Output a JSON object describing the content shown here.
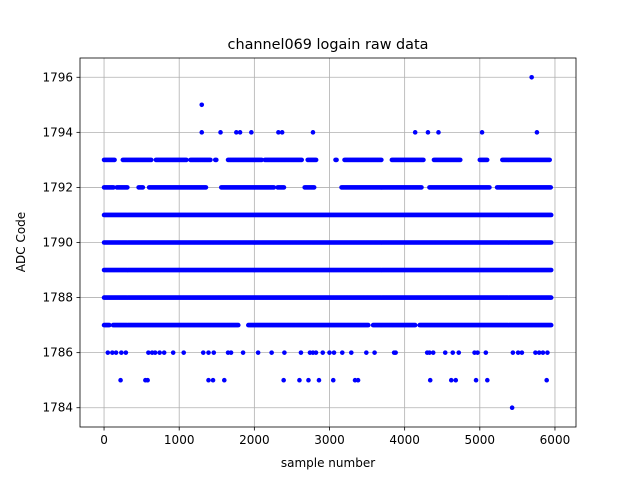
{
  "chart_data": {
    "type": "scatter",
    "title": "channel069 logain raw data",
    "xlabel": "sample number",
    "ylabel": "ADC Code",
    "xlim": [
      -320,
      6280
    ],
    "ylim": [
      1783.3,
      1796.7
    ],
    "xticks": [
      0,
      1000,
      2000,
      3000,
      4000,
      5000,
      6000
    ],
    "yticks": [
      1784,
      1786,
      1788,
      1790,
      1792,
      1794,
      1796
    ],
    "grid": true,
    "marker_color": "#0000ff",
    "n_samples": 6000,
    "series": [
      {
        "values_by_level": [
          {
            "y": 1796,
            "x": [
              5690
            ]
          },
          {
            "y": 1795,
            "x": [
              1300
            ]
          },
          {
            "y": 1794,
            "x": [
              1300,
              1550,
              1760,
              1810,
              1960,
              2320,
              2370,
              2780,
              4140,
              4310,
              4450,
              5030,
              5760
            ]
          },
          {
            "y": 1793,
            "x_ranges": [
              [
                0,
                140
              ],
              [
                250,
                640
              ],
              [
                690,
                1100
              ],
              [
                1150,
                1420
              ],
              [
                1480,
                1500
              ],
              [
                1650,
                2100
              ],
              [
                2140,
                2640
              ],
              [
                2710,
                2830
              ],
              [
                3080,
                3100
              ],
              [
                3200,
                3700
              ],
              [
                3830,
                4250
              ],
              [
                4390,
                4740
              ],
              [
                5000,
                5110
              ],
              [
                5300,
                5940
              ]
            ]
          },
          {
            "y": 1792,
            "x_ranges": [
              [
                0,
                130
              ],
              [
                170,
                320
              ],
              [
                460,
                520
              ],
              [
                600,
                1360
              ],
              [
                1560,
                2260
              ],
              [
                2310,
                2400
              ],
              [
                2670,
                2800
              ],
              [
                3160,
                4230
              ],
              [
                4330,
                5140
              ],
              [
                5230,
                5950
              ]
            ]
          },
          {
            "y": 1791,
            "x_ranges": [
              [
                0,
                5950
              ]
            ]
          },
          {
            "y": 1790,
            "x_ranges": [
              [
                0,
                5950
              ]
            ]
          },
          {
            "y": 1789,
            "x_ranges": [
              [
                0,
                5950
              ]
            ]
          },
          {
            "y": 1788,
            "x_ranges": [
              [
                0,
                5950
              ]
            ]
          },
          {
            "y": 1787,
            "x_ranges": [
              [
                0,
                70
              ],
              [
                120,
                1790
              ],
              [
                1920,
                3520
              ],
              [
                3580,
                4140
              ],
              [
                4200,
                5950
              ]
            ]
          },
          {
            "y": 1786,
            "x": [
              50,
              110,
              160,
              230,
              290,
              590,
              640,
              680,
              740,
              800,
              920,
              1060,
              1320,
              1390,
              1460,
              1650,
              1690,
              1850,
              2050,
              2230,
              2400,
              2620,
              2740,
              2780,
              2820,
              2910,
              3000,
              3060,
              3170,
              3290,
              3490,
              3600,
              3860,
              3880,
              4300,
              4330,
              4380,
              4540,
              4640,
              4720,
              4930,
              4970,
              5080,
              5440,
              5510,
              5560,
              5740,
              5790,
              5840,
              5900
            ]
          },
          {
            "y": 1785,
            "x": [
              220,
              550,
              580,
              1390,
              1450,
              1600,
              2390,
              2600,
              2720,
              2860,
              3050,
              3340,
              3380,
              4340,
              4620,
              4680,
              4950,
              5100,
              5890
            ]
          },
          {
            "y": 1784,
            "x": [
              5430
            ]
          }
        ]
      }
    ]
  }
}
